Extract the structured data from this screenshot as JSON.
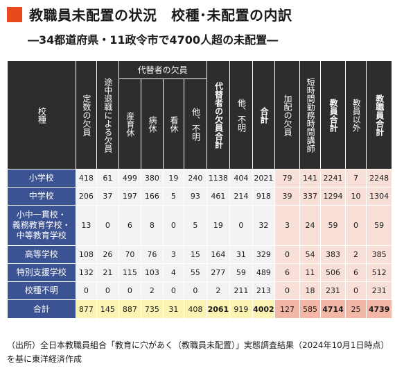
{
  "title": "教職員未配置の状況　校種･未配置の内訳",
  "subtitle": "―34都道府県・11政令市で4700人超の未配置―",
  "colors": {
    "accent": "#e8491d",
    "header_bg": "#2d2d2d",
    "row_header_bg": "#3c5393",
    "total_yellow": "#faf3b3",
    "pink": "#f8e0d8",
    "pink_total": "#f2b7a6"
  },
  "table": {
    "corner_label": "校種",
    "group_label": "代替者の欠員",
    "columns": [
      "定数の欠員",
      "途中退職による欠員",
      "産育休",
      "病休",
      "看休",
      "他、不明",
      "代替者の欠員合計",
      "他、不明",
      "合計",
      "加配の欠員",
      "短時間勤務時間講師",
      "教員合計",
      "教員以外",
      "教職員合計"
    ],
    "rows": [
      {
        "label": "小学校",
        "values": [
          "418",
          "61",
          "499",
          "380",
          "19",
          "240",
          "1138",
          "404",
          "2021",
          "79",
          "141",
          "2241",
          "7",
          "2248"
        ]
      },
      {
        "label": "中学校",
        "values": [
          "206",
          "37",
          "197",
          "166",
          "5",
          "93",
          "461",
          "214",
          "918",
          "39",
          "337",
          "1294",
          "10",
          "1304"
        ]
      },
      {
        "label": "小中一貫校・\n義務教育学校・\n中等教育学校",
        "values": [
          "13",
          "0",
          "6",
          "8",
          "0",
          "5",
          "19",
          "0",
          "32",
          "3",
          "24",
          "59",
          "0",
          "59"
        ]
      },
      {
        "label": "高等学校",
        "values": [
          "108",
          "26",
          "70",
          "76",
          "3",
          "15",
          "164",
          "31",
          "329",
          "0",
          "54",
          "383",
          "2",
          "385"
        ]
      },
      {
        "label": "特別支援学校",
        "values": [
          "132",
          "21",
          "115",
          "103",
          "4",
          "55",
          "277",
          "59",
          "489",
          "6",
          "11",
          "506",
          "6",
          "512"
        ]
      },
      {
        "label": "校種不明",
        "values": [
          "0",
          "0",
          "0",
          "2",
          "0",
          "0",
          "2",
          "211",
          "213",
          "0",
          "18",
          "231",
          "0",
          "231"
        ]
      },
      {
        "label": "合計",
        "values": [
          "877",
          "145",
          "887",
          "735",
          "31",
          "408",
          "2061",
          "919",
          "4002",
          "127",
          "585",
          "4714",
          "25",
          "4739"
        ]
      }
    ]
  },
  "source_note": "（出所）全日本教職員組合「教育に穴があく（教職員未配置）」実態調査結果（2024年10月1日時点）を基に東洋経済作成"
}
